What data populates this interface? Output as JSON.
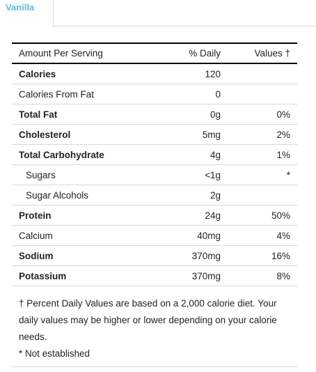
{
  "tabs": {
    "active_label": "Vanilla"
  },
  "table": {
    "headers": {
      "name": "Amount Per Serving",
      "amount": "% Daily",
      "dv": "Values †"
    },
    "rows": [
      {
        "name": "Calories",
        "amount": "120",
        "dv": "",
        "bold": true,
        "indent": false
      },
      {
        "name": "Calories From Fat",
        "amount": "0",
        "dv": "",
        "bold": false,
        "indent": false
      },
      {
        "name": "Total Fat",
        "amount": "0g",
        "dv": "0%",
        "bold": true,
        "indent": false
      },
      {
        "name": "Cholesterol",
        "amount": "5mg",
        "dv": "2%",
        "bold": true,
        "indent": false
      },
      {
        "name": "Total Carbohydrate",
        "amount": "4g",
        "dv": "1%",
        "bold": true,
        "indent": false
      },
      {
        "name": "Sugars",
        "amount": "<1g",
        "dv": "*",
        "bold": false,
        "indent": true
      },
      {
        "name": "Sugar Alcohols",
        "amount": "2g",
        "dv": "",
        "bold": false,
        "indent": true
      },
      {
        "name": "Protein",
        "amount": "24g",
        "dv": "50%",
        "bold": true,
        "indent": false
      },
      {
        "name": "Calcium",
        "amount": "40mg",
        "dv": "4%",
        "bold": false,
        "indent": false
      },
      {
        "name": "Sodium",
        "amount": "370mg",
        "dv": "16%",
        "bold": true,
        "indent": false
      },
      {
        "name": "Potassium",
        "amount": "370mg",
        "dv": "8%",
        "bold": true,
        "indent": false
      }
    ]
  },
  "footnotes": {
    "dv_note": "† Percent Daily Values are based on a 2,000 calorie diet. Your daily values may be higher or lower depending on your calorie needs.",
    "not_established": "* Not established"
  },
  "colors": {
    "tab_text": "#5bb8e0",
    "rule": "#000000",
    "divider": "#d9d9d9"
  }
}
